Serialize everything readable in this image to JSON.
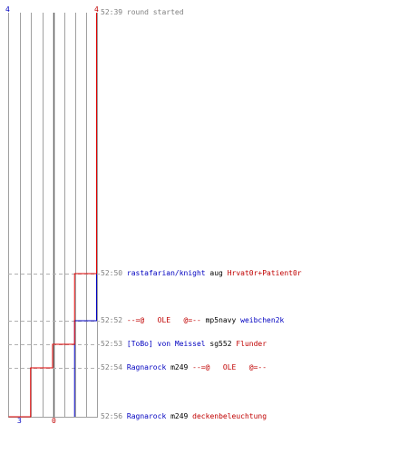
{
  "scale": {
    "blue_top": "4",
    "red_top": "4",
    "blue_bottom": "3",
    "red_bottom": "0"
  },
  "colors": {
    "team_a": "#0000c0",
    "team_b": "#e00000",
    "grid": "#a0a0a0",
    "dashed": "#b0b0b0",
    "timestamp": "#808080"
  },
  "events": [
    {
      "time": "52:39",
      "parts": [
        {
          "text": "round started",
          "style": "gray"
        }
      ]
    },
    {
      "time": "52:50",
      "parts": [
        {
          "text": "rastafarian/knight",
          "style": "blue"
        },
        {
          "text": " aug ",
          "style": "black"
        },
        {
          "text": "Hrvat0r+Patient0r",
          "style": "red"
        }
      ]
    },
    {
      "time": "52:52",
      "parts": [
        {
          "text": "--=@   OLE   @=--",
          "style": "red"
        },
        {
          "text": " mp5navy ",
          "style": "black"
        },
        {
          "text": "weibchen2k",
          "style": "blue"
        }
      ]
    },
    {
      "time": "52:53",
      "parts": [
        {
          "text": "[ToBo] von Meissel",
          "style": "blue"
        },
        {
          "text": " sg552 ",
          "style": "black"
        },
        {
          "text": "Flunder",
          "style": "red"
        }
      ]
    },
    {
      "time": "52:54",
      "parts": [
        {
          "text": "Ragnarock",
          "style": "blue"
        },
        {
          "text": " m249 ",
          "style": "black"
        },
        {
          "text": "--=@   OLE   @=--",
          "style": "red"
        }
      ]
    },
    {
      "time": "52:56",
      "parts": [
        {
          "text": "Ragnarock",
          "style": "blue"
        },
        {
          "text": " m249 ",
          "style": "black"
        },
        {
          "text": "deckenbeleuchtung",
          "style": "red"
        }
      ]
    }
  ],
  "chart_data": {
    "type": "line",
    "x": [
      "52:39",
      "52:50",
      "52:52",
      "52:53",
      "52:54",
      "52:56"
    ],
    "series": [
      {
        "values": [
          4,
          4,
          3,
          3,
          3,
          3
        ]
      },
      {
        "values": [
          4,
          3,
          3,
          2,
          1,
          0
        ]
      }
    ],
    "ylim": [
      0,
      4
    ],
    "grid": true
  }
}
